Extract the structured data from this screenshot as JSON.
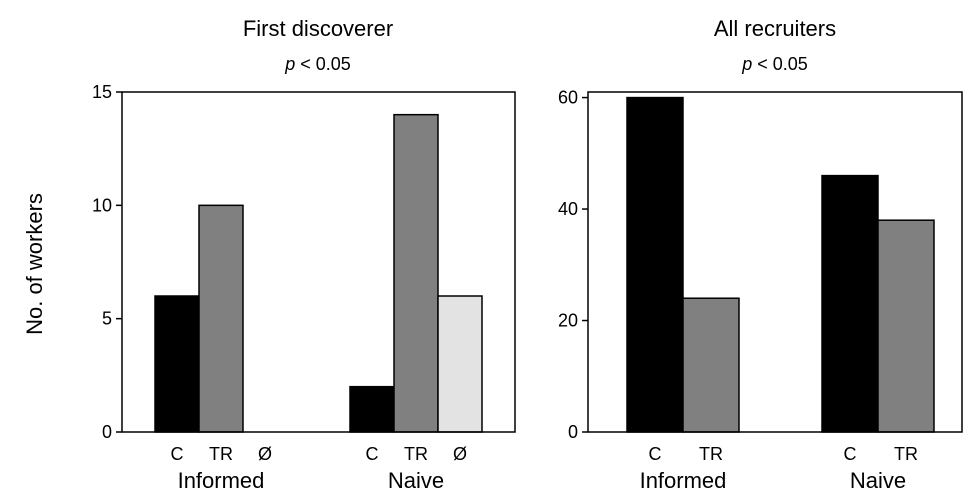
{
  "ylabel": "No. of workers",
  "chart_data": [
    {
      "type": "bar",
      "title": "First discoverer",
      "subtitle_p": "p",
      "subtitle_rest": " < 0.05",
      "ylim": [
        0,
        15
      ],
      "yticks": [
        0,
        5,
        10,
        15
      ],
      "groups": [
        {
          "name": "Informed",
          "bars": [
            {
              "label": "C",
              "value": 6
            },
            {
              "label": "TR",
              "value": 10
            },
            {
              "label": "Ø",
              "value": 0
            }
          ]
        },
        {
          "name": "Naive",
          "bars": [
            {
              "label": "C",
              "value": 2
            },
            {
              "label": "TR",
              "value": 14
            },
            {
              "label": "Ø",
              "value": 6
            }
          ]
        }
      ],
      "colors": {
        "C": "#000000",
        "TR": "#808080",
        "Ø": "#e3e3e3"
      }
    },
    {
      "type": "bar",
      "title": "All recruiters",
      "subtitle_p": "p",
      "subtitle_rest": " < 0.05",
      "ylim": [
        0,
        61
      ],
      "yticks": [
        0,
        20,
        40,
        60
      ],
      "groups": [
        {
          "name": "Informed",
          "bars": [
            {
              "label": "C",
              "value": 60
            },
            {
              "label": "TR",
              "value": 24
            }
          ]
        },
        {
          "name": "Naive",
          "bars": [
            {
              "label": "C",
              "value": 46
            },
            {
              "label": "TR",
              "value": 38
            }
          ]
        }
      ],
      "colors": {
        "C": "#000000",
        "TR": "#808080"
      }
    }
  ]
}
